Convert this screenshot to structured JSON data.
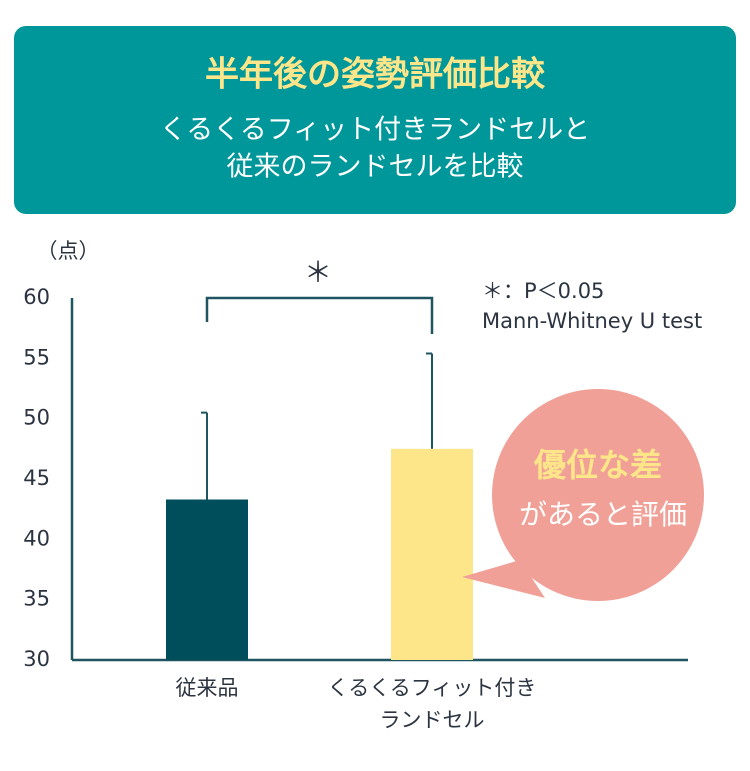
{
  "chart_data": {
    "type": "bar",
    "title": "半年後の姿勢評価比較",
    "subtitle": [
      "くるくるフィット付きランドセルと",
      "従来のランドセルを比較"
    ],
    "ylabel": "（点）",
    "categories": [
      "従来品",
      "くるくるフィット付き\nランドセル"
    ],
    "values": [
      43.3,
      47.5
    ],
    "errors": [
      7.2,
      7.9
    ],
    "colors": [
      "#004e5c",
      "#fde68a"
    ],
    "ylim": [
      30,
      60
    ],
    "yticks": [
      30,
      35,
      40,
      45,
      50,
      55,
      60
    ],
    "significance": "＊",
    "notes": [
      "＊：P＜0.05",
      "Mann-Whitney U test"
    ],
    "callout": [
      "優位な差",
      "があると評価"
    ]
  }
}
